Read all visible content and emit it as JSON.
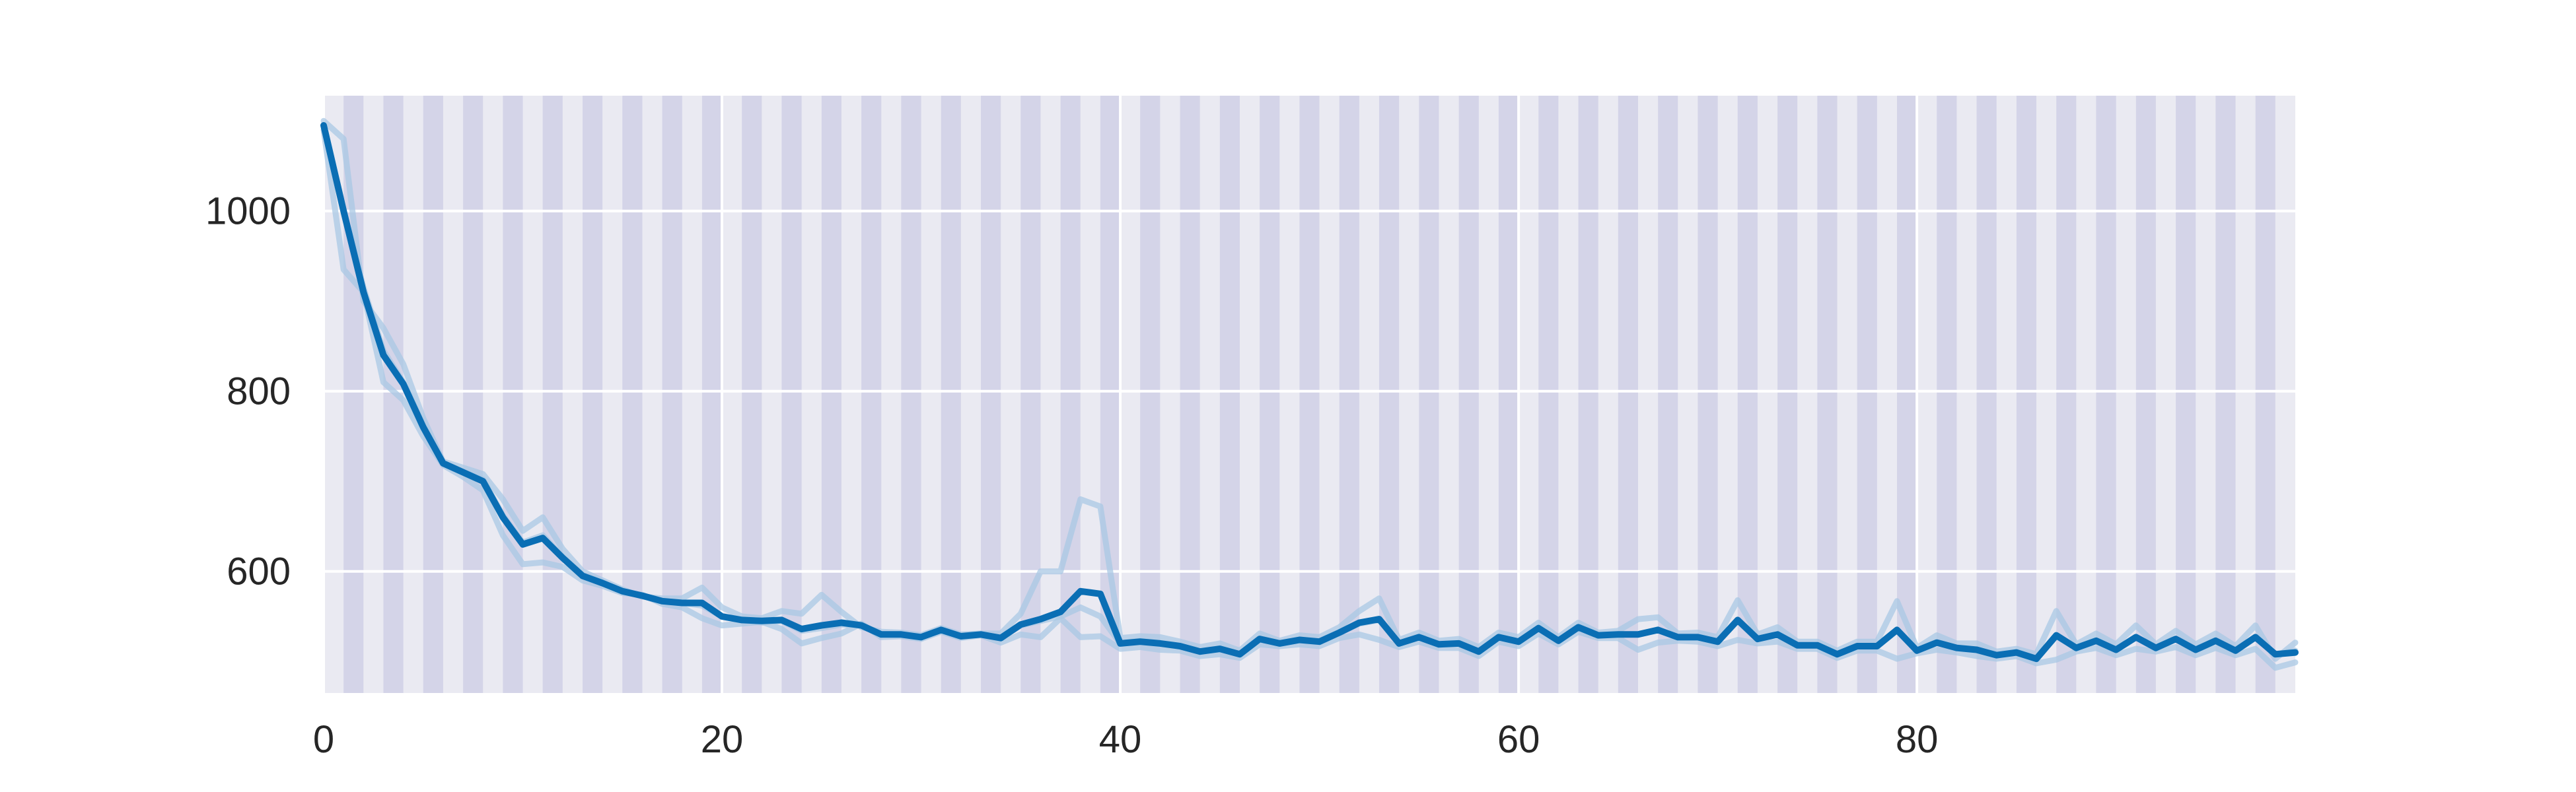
{
  "chart_data": {
    "type": "line",
    "title": "",
    "xlabel": "",
    "ylabel": "",
    "xlim": [
      0,
      99
    ],
    "ylim": [
      465,
      1128
    ],
    "xticks": [
      0,
      20,
      40,
      60,
      80
    ],
    "xtick_labels": [
      "0",
      "20",
      "40",
      "60",
      "80"
    ],
    "yticks": [
      600,
      800,
      1000
    ],
    "ytick_labels": [
      "600",
      "800",
      "1000"
    ],
    "grid": true,
    "legend": "none",
    "colors": {
      "plot_background": "#eaeaf2",
      "stripe": "#d4d4e8",
      "grid": "#ffffff",
      "mean_line": "#0a6eb4",
      "run_line": "#aac8e4"
    },
    "stripes": {
      "start": 1,
      "period": 2,
      "width": 1
    },
    "series": [
      {
        "role": "mean",
        "x": [
          0,
          1,
          2,
          3,
          4,
          5,
          6,
          7,
          8,
          9,
          10,
          11,
          12,
          13,
          14,
          15,
          16,
          17,
          18,
          19,
          20,
          21,
          22,
          23,
          24,
          25,
          26,
          27,
          28,
          29,
          30,
          31,
          32,
          33,
          34,
          35,
          36,
          37,
          38,
          39,
          40,
          41,
          42,
          43,
          44,
          45,
          46,
          47,
          48,
          49,
          50,
          51,
          52,
          53,
          54,
          55,
          56,
          57,
          58,
          59,
          60,
          61,
          62,
          63,
          64,
          65,
          66,
          67,
          68,
          69,
          70,
          71,
          72,
          73,
          74,
          75,
          76,
          77,
          78,
          79,
          80,
          81,
          82,
          83,
          84,
          85,
          86,
          87,
          88,
          89,
          90,
          91,
          92,
          93,
          94,
          95,
          96,
          97,
          98,
          99
        ],
        "y": [
          1095,
          1000,
          910,
          840,
          808,
          760,
          720,
          710,
          700,
          660,
          630,
          637,
          615,
          595,
          587,
          578,
          573,
          567,
          565,
          565,
          550,
          546,
          545,
          546,
          536,
          540,
          543,
          540,
          530,
          530,
          527,
          535,
          528,
          530,
          526,
          541,
          547,
          555,
          578,
          575,
          520,
          522,
          520,
          517,
          511,
          514,
          508,
          525,
          520,
          524,
          522,
          532,
          543,
          547,
          520,
          527,
          519,
          520,
          511,
          527,
          522,
          537,
          523,
          538,
          529,
          530,
          530,
          535,
          527,
          527,
          522,
          546,
          525,
          530,
          518,
          518,
          508,
          517,
          517,
          535,
          512,
          521,
          515,
          513,
          507,
          510,
          503,
          529,
          515,
          523,
          513,
          527,
          515,
          525,
          513,
          523,
          512,
          527,
          508,
          510
        ]
      },
      {
        "role": "run",
        "x": [
          0,
          1,
          2,
          3,
          4,
          5,
          6,
          7,
          8,
          9,
          10,
          11,
          12,
          13,
          14,
          15,
          16,
          17,
          18,
          19,
          20,
          21,
          22,
          23,
          24,
          25,
          26,
          27,
          28,
          29,
          30,
          31,
          32,
          33,
          34,
          35,
          36,
          37,
          38,
          39,
          40,
          41,
          42,
          43,
          44,
          45,
          46,
          47,
          48,
          49,
          50,
          51,
          52,
          53,
          54,
          55,
          56,
          57,
          58,
          59,
          60,
          61,
          62,
          63,
          64,
          65,
          66,
          67,
          68,
          69,
          70,
          71,
          72,
          73,
          74,
          75,
          76,
          77,
          78,
          79,
          80,
          81,
          82,
          83,
          84,
          85,
          86,
          87,
          88,
          89,
          90,
          91,
          92,
          93,
          94,
          95,
          96,
          97,
          98,
          99
        ],
        "y": [
          1100,
          1080,
          900,
          870,
          830,
          770,
          722,
          715,
          708,
          680,
          645,
          660,
          625,
          600,
          590,
          580,
          572,
          570,
          570,
          582,
          560,
          550,
          548,
          556,
          553,
          574,
          555,
          538,
          533,
          532,
          529,
          537,
          530,
          531,
          531,
          553,
          600,
          600,
          680,
          672,
          526,
          528,
          527,
          522,
          516,
          520,
          512,
          531,
          523,
          529,
          527,
          538,
          556,
          570,
          524,
          532,
          523,
          525,
          516,
          532,
          527,
          543,
          527,
          543,
          532,
          534,
          547,
          549,
          531,
          532,
          527,
          568,
          530,
          538,
          522,
          522,
          512,
          522,
          522,
          567,
          515,
          529,
          520,
          520,
          511,
          514,
          508,
          556,
          519,
          531,
          519,
          540,
          519,
          534,
          519,
          531,
          517,
          540,
          503,
          521
        ]
      },
      {
        "role": "run",
        "x": [
          0,
          1,
          2,
          3,
          4,
          5,
          6,
          7,
          8,
          9,
          10,
          11,
          12,
          13,
          14,
          15,
          16,
          17,
          18,
          19,
          20,
          21,
          22,
          23,
          24,
          25,
          26,
          27,
          28,
          29,
          30,
          31,
          32,
          33,
          34,
          35,
          36,
          37,
          38,
          39,
          40,
          41,
          42,
          43,
          44,
          45,
          46,
          47,
          48,
          49,
          50,
          51,
          52,
          53,
          54,
          55,
          56,
          57,
          58,
          59,
          60,
          61,
          62,
          63,
          64,
          65,
          66,
          67,
          68,
          69,
          70,
          71,
          72,
          73,
          74,
          75,
          76,
          77,
          78,
          79,
          80,
          81,
          82,
          83,
          84,
          85,
          86,
          87,
          88,
          89,
          90,
          91,
          92,
          93,
          94,
          95,
          96,
          97,
          98,
          99
        ],
        "y": [
          1090,
          935,
          910,
          810,
          790,
          750,
          718,
          705,
          690,
          640,
          608,
          610,
          605,
          590,
          584,
          576,
          574,
          564,
          560,
          548,
          540,
          542,
          544,
          536,
          520,
          526,
          531,
          542,
          527,
          528,
          525,
          533,
          526,
          529,
          521,
          530,
          527,
          548,
          527,
          528,
          514,
          516,
          513,
          512,
          506,
          508,
          504,
          519,
          517,
          519,
          517,
          526,
          530,
          524,
          516,
          522,
          515,
          515,
          506,
          522,
          517,
          531,
          519,
          533,
          526,
          526,
          513,
          521,
          523,
          522,
          517,
          524,
          520,
          522,
          514,
          514,
          504,
          512,
          512,
          503,
          509,
          513,
          510,
          506,
          503,
          506,
          498,
          502,
          511,
          515,
          507,
          514,
          511,
          516,
          507,
          515,
          507,
          514,
          493,
          499
        ]
      },
      {
        "role": "run",
        "x": [
          0,
          1,
          2,
          3,
          4,
          5,
          6,
          7,
          8,
          9,
          10,
          11,
          12,
          13,
          14,
          15,
          16,
          17,
          18,
          19,
          20,
          21,
          22,
          23,
          24,
          25,
          26,
          27,
          28,
          29,
          30,
          31,
          32,
          33,
          34,
          35,
          36,
          37,
          38,
          39,
          40,
          41,
          42,
          43,
          44,
          45,
          46,
          47,
          48,
          49,
          50,
          51,
          52,
          53,
          54,
          55,
          56,
          57,
          58,
          59,
          60,
          61,
          62,
          63,
          64,
          65,
          66,
          67,
          68,
          69,
          70,
          71,
          72,
          73,
          74,
          75,
          76,
          77,
          78,
          79,
          80,
          81,
          82,
          83,
          84,
          85,
          86,
          87,
          88,
          89,
          90,
          91,
          92,
          93,
          94,
          95,
          96,
          97,
          98,
          99
        ],
        "y": [
          1095,
          1000,
          915,
          845,
          810,
          762,
          720,
          710,
          702,
          662,
          632,
          640,
          616,
          596,
          588,
          578,
          573,
          567,
          565,
          562,
          550,
          546,
          543,
          545,
          534,
          537,
          541,
          540,
          530,
          530,
          527,
          535,
          528,
          530,
          526,
          540,
          545,
          550,
          560,
          550,
          520,
          523,
          520,
          517,
          511,
          514,
          508,
          525,
          520,
          524,
          522,
          532,
          542,
          546,
          520,
          527,
          519,
          520,
          511,
          527,
          522,
          537,
          523,
          538,
          529,
          530,
          530,
          535,
          527,
          527,
          522,
          545,
          525,
          530,
          518,
          518,
          508,
          517,
          517,
          535,
          512,
          521,
          515,
          513,
          507,
          510,
          503,
          528,
          515,
          523,
          513,
          527,
          515,
          525,
          513,
          523,
          512,
          527,
          508,
          512
        ]
      }
    ]
  }
}
